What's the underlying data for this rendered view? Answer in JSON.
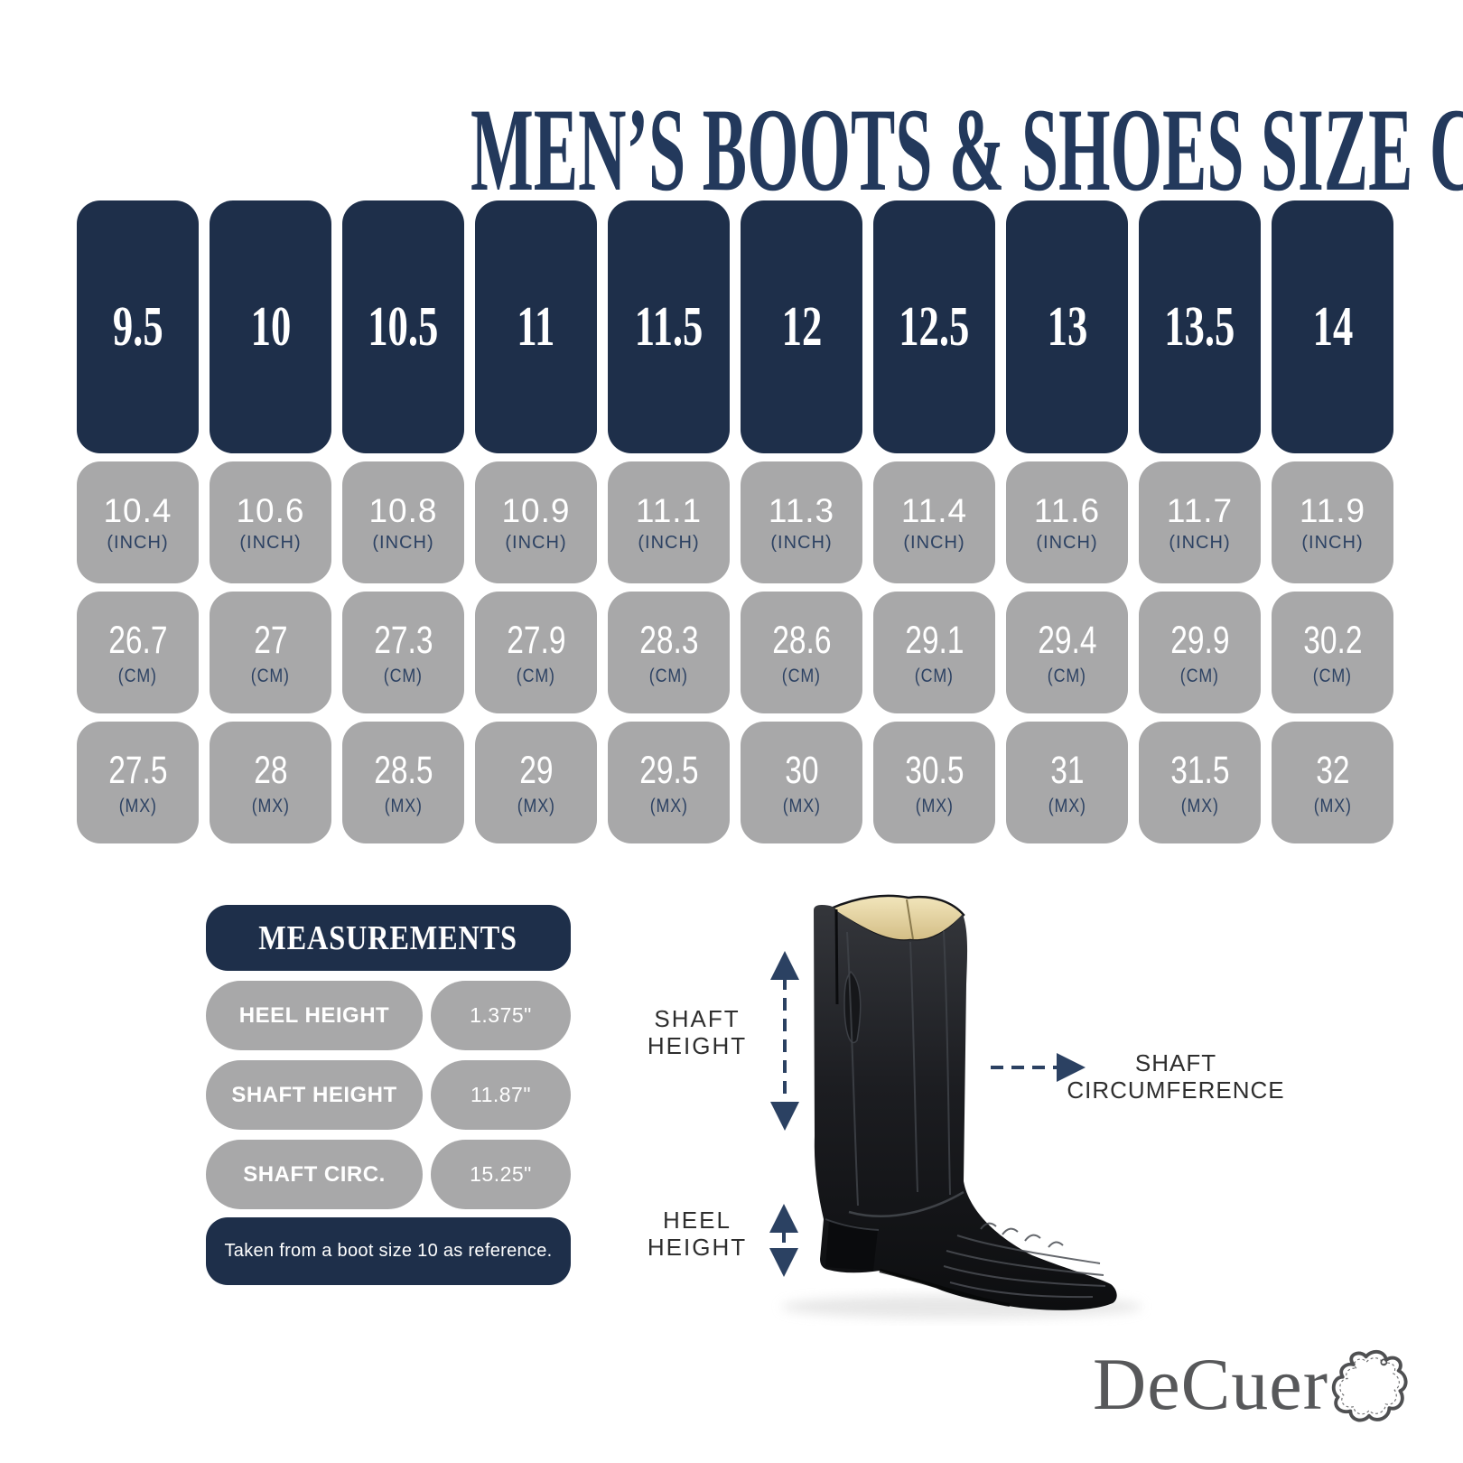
{
  "title": "MEN’S BOOTS & SHOES SIZE CHART",
  "size_chart": {
    "sizes": [
      "9.5",
      "10",
      "10.5",
      "11",
      "11.5",
      "12",
      "12.5",
      "13",
      "13.5",
      "14"
    ],
    "rows": [
      {
        "unit_label": "(INCH)",
        "values": [
          "10.4",
          "10.6",
          "10.8",
          "10.9",
          "11.1",
          "11.3",
          "11.4",
          "11.6",
          "11.7",
          "11.9"
        ]
      },
      {
        "unit_label": "(CM)",
        "values": [
          "26.7",
          "27",
          "27.3",
          "27.9",
          "28.3",
          "28.6",
          "29.1",
          "29.4",
          "29.9",
          "30.2"
        ]
      },
      {
        "unit_label": "(MX)",
        "values": [
          "27.5",
          "28",
          "28.5",
          "29",
          "29.5",
          "30",
          "30.5",
          "31",
          "31.5",
          "32"
        ]
      }
    ]
  },
  "measurements": {
    "header": "MEASUREMENTS",
    "rows": [
      {
        "label": "HEEL HEIGHT",
        "value": "1.375\""
      },
      {
        "label": "SHAFT HEIGHT",
        "value": "11.87\""
      },
      {
        "label": "SHAFT CIRC.",
        "value": "15.25\""
      }
    ],
    "note": "Taken from a boot size 10 as reference."
  },
  "diagram": {
    "shaft_height_label": {
      "line1": "SHAFT",
      "line2": "HEIGHT"
    },
    "shaft_circumference_label": {
      "line1": "SHAFT",
      "line2": "CIRCUMFERENCE"
    },
    "heel_height_label": {
      "line1": "HEEL",
      "line2": "HEIGHT"
    }
  },
  "logo": {
    "text": "DeCuer",
    "icon": "leather-hide-icon"
  },
  "colors": {
    "navy": "#1e2f4a",
    "title_navy": "#23395c",
    "gray": "#a8a8a9",
    "unit_navy": "#2d4263",
    "arrow_navy": "#2b4162",
    "diagram_label": "#2e2e2e",
    "logo_gray": "#57585a"
  }
}
